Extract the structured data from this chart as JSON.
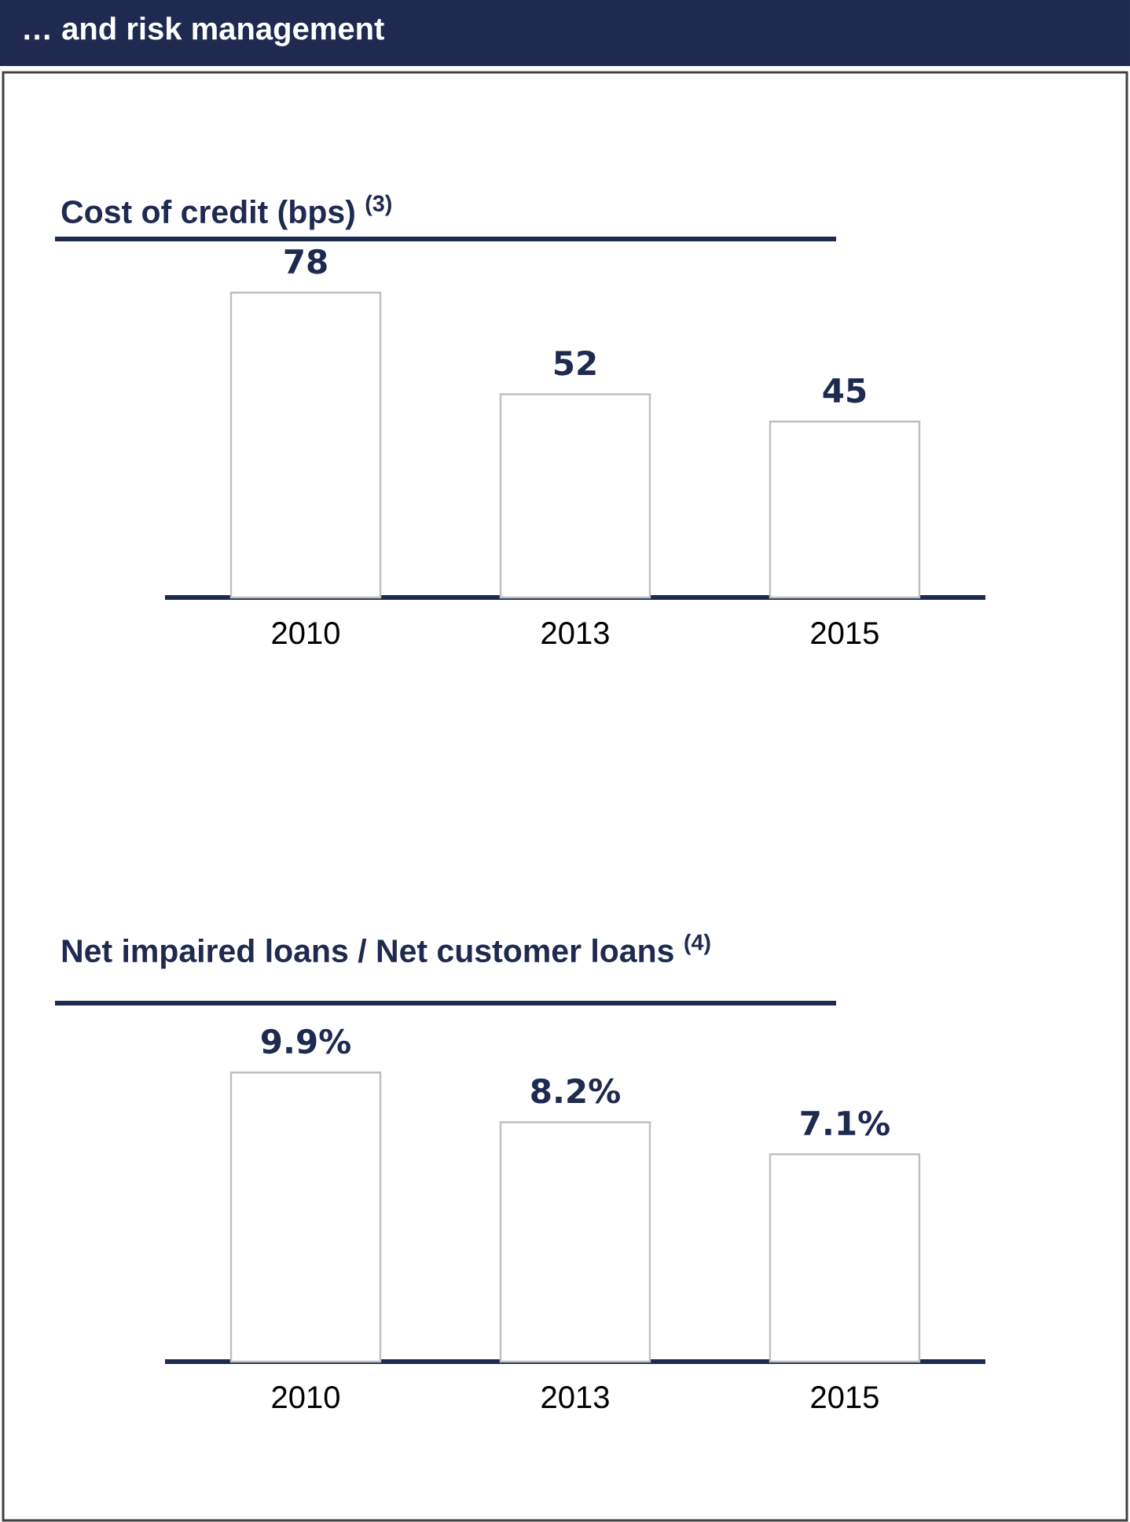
{
  "chart_data": [
    {
      "type": "bar",
      "title": "… and risk management",
      "subtitle": "Cost of credit  (bps) $^{(3)}$",
      "categories": [
        "2010",
        "2013",
        "2015"
      ],
      "values": [
        78,
        52,
        45
      ],
      "value_labels": [
        "78",
        "52",
        "45"
      ],
      "color": "#bfbfbf",
      "tick_labels": "x"
    },
    {
      "type": "bar",
      "title": "Net impaired loans / Net customer loans $^{(4)}$",
      "categories": [
        "2010",
        "2013",
        "2015"
      ],
      "values": [
        9.9,
        8.2,
        7.1
      ],
      "value_labels": [
        "9.9%",
        "8.2%",
        "7.1%"
      ],
      "color": "#bfbfbf",
      "tick_labels": "x"
    }
  ]
}
